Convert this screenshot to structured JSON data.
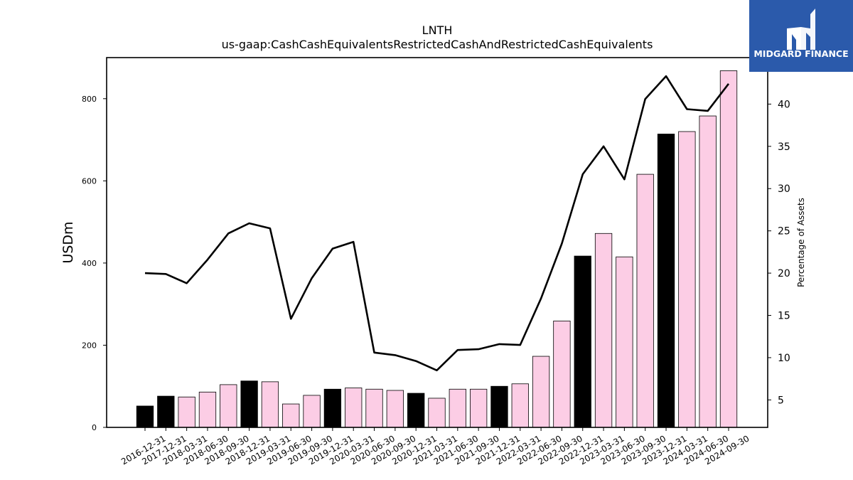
{
  "brand": {
    "name": "MIDGARD FINANCE"
  },
  "chart_data": {
    "type": "bar",
    "title": "LNTH",
    "subtitle": "us-gaap:CashCashEquivalentsRestrictedCashAndRestrictedCashEquivalents",
    "ylabel": "USDm",
    "y2label": "Percentage of Assets",
    "ylim": [
      0,
      900
    ],
    "y2lim": [
      1.75,
      45.5
    ],
    "yticks": [
      0,
      200,
      400,
      600,
      800
    ],
    "y2ticks": [
      5,
      10,
      15,
      20,
      25,
      30,
      35,
      40
    ],
    "colors": {
      "annual": "#000000",
      "quarterly": "#fccde5",
      "line": "#000000"
    },
    "categories": [
      "2016-12-31",
      "2017-12-31",
      "2018-03-31",
      "2018-06-30",
      "2018-09-30",
      "2018-12-31",
      "2019-03-31",
      "2019-06-30",
      "2019-09-30",
      "2019-12-31",
      "2020-03-31",
      "2020-06-30",
      "2020-09-30",
      "2020-12-31",
      "2021-03-31",
      "2021-06-30",
      "2021-09-30",
      "2021-12-31",
      "2022-03-31",
      "2022-06-30",
      "2022-09-30",
      "2022-12-31",
      "2023-03-31",
      "2023-06-30",
      "2023-09-30",
      "2023-12-31",
      "2024-03-31",
      "2024-06-30",
      "2024-09-30"
    ],
    "series": [
      {
        "kind": "bar",
        "values": [
          52,
          76,
          74,
          86,
          104,
          113,
          111,
          57,
          78,
          93,
          96,
          93,
          90,
          83,
          71,
          93,
          93,
          100,
          106,
          173,
          259,
          417,
          472,
          415,
          616,
          714,
          720,
          758,
          868
        ],
        "annual": [
          true,
          true,
          false,
          false,
          false,
          true,
          false,
          false,
          false,
          true,
          false,
          false,
          false,
          true,
          false,
          false,
          false,
          true,
          false,
          false,
          false,
          true,
          false,
          false,
          false,
          true,
          false,
          false,
          false
        ]
      },
      {
        "kind": "line",
        "axis": "right",
        "values": [
          20.0,
          19.9,
          18.8,
          21.6,
          24.7,
          25.9,
          25.3,
          14.6,
          19.4,
          22.9,
          23.7,
          10.6,
          10.3,
          9.6,
          8.5,
          10.9,
          11.0,
          11.6,
          11.5,
          17.0,
          23.5,
          31.7,
          35.0,
          31.1,
          40.6,
          43.3,
          39.4,
          39.2,
          42.4
        ]
      }
    ]
  }
}
